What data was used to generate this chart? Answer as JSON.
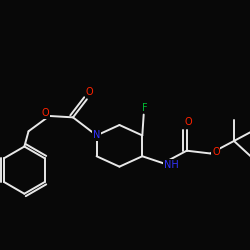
{
  "background_color": "#080808",
  "bond_color": "#e8e8e8",
  "atom_colors": {
    "N": "#3333ff",
    "O": "#ff2200",
    "F": "#00bb33",
    "C": "#e8e8e8",
    "H": "#e8e8e8"
  },
  "title": "",
  "figsize": [
    2.5,
    2.5
  ],
  "dpi": 100
}
